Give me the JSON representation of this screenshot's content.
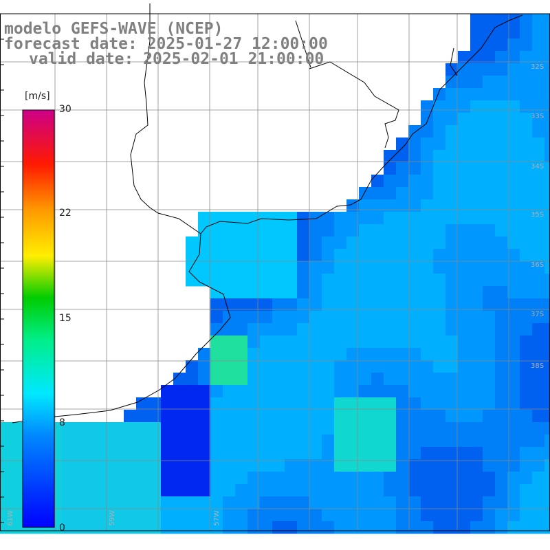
{
  "header": {
    "model": "modelo GEFS-WAVE (NCEP)",
    "forecast_date": "forecast date: 2025-01-27 12:00:00",
    "valid_date": "valid date: 2025-02-01 21:00:00"
  },
  "colorbar": {
    "unit": "[m/s]",
    "ticks": [
      "30",
      "22",
      "15",
      "8",
      "0"
    ],
    "colors": [
      "#0000ff",
      "#0080ff",
      "#00e0ff",
      "#00ffcc",
      "#00e000",
      "#ffff00",
      "#ffa000",
      "#ff3000",
      "#ff0000",
      "#cc0099"
    ]
  },
  "map": {
    "lat_labels": [
      "32S",
      "33S",
      "34S",
      "35S",
      "36S",
      "37S",
      "38S"
    ],
    "lon_labels": [
      "61W",
      "59W",
      "57W"
    ],
    "land_color": "#ffffff",
    "grid_color": "#888888"
  }
}
